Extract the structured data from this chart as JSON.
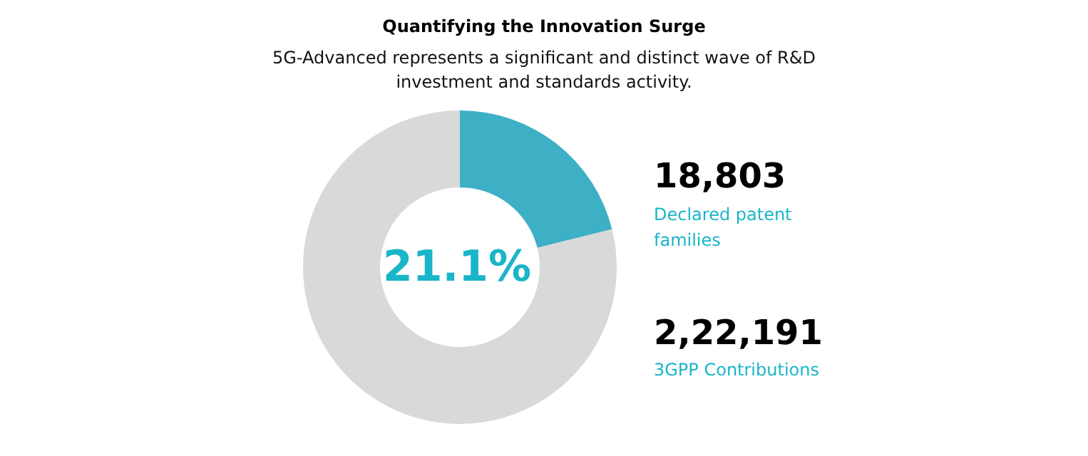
{
  "chart_data": {
    "type": "donut",
    "title": "Quantifying the Innovation Surge",
    "subtitle": "5G-Advanced represents a significant and distinct wave of R&D investment and standards activity.",
    "categories": [
      null,
      null
    ],
    "values": [
      21.1,
      78.9
    ],
    "colors": [
      "#3db0c6",
      "#d9d9d9"
    ],
    "annotations": [
      "21.1%",
      "18,803",
      "Declared patent families",
      "2,22,191",
      "3GPP Contributions"
    ]
  }
}
